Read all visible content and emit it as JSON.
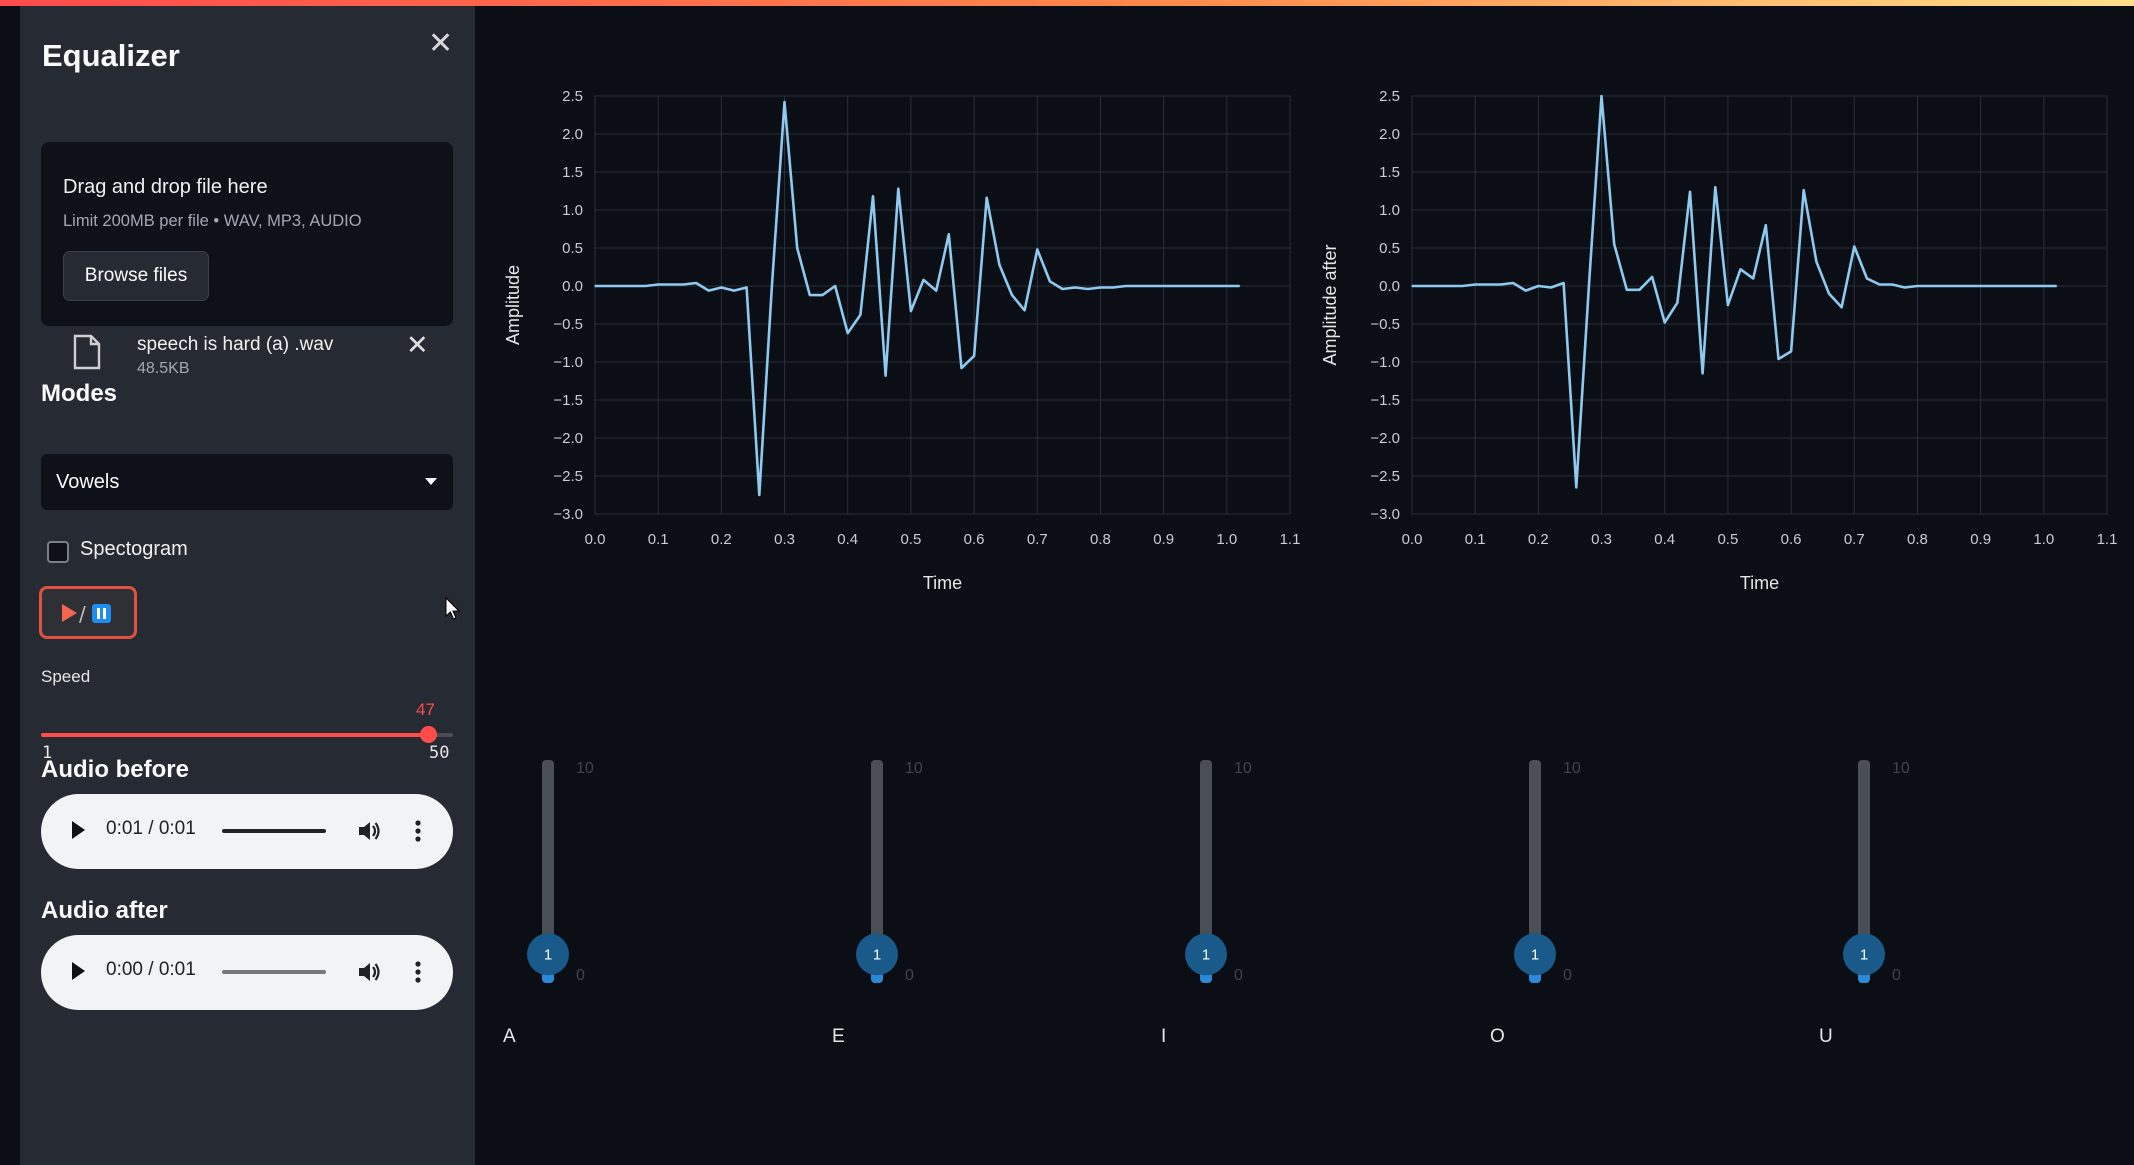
{
  "sidebar": {
    "title": "Equalizer",
    "uploader": {
      "title": "Drag and drop file here",
      "limit": "Limit 200MB per file • WAV, MP3, AUDIO",
      "browse_label": "Browse files"
    },
    "file": {
      "name": "speech is hard (a) .wav",
      "size": "48.5KB"
    },
    "modes_label": "Modes",
    "mode_selected": "Vowels",
    "spectrogram_label": "Spectogram",
    "spectrogram_checked": false,
    "speed": {
      "label": "Speed",
      "value": "47",
      "min": "1",
      "max": "50",
      "fraction": 0.939
    },
    "audio_before": {
      "title": "Audio before",
      "time": "0:01 / 0:01",
      "progress": 1.0
    },
    "audio_after": {
      "title": "Audio after",
      "time": "0:00 / 0:01",
      "progress": 0.0
    }
  },
  "sliders": [
    {
      "label": "A",
      "value": "1",
      "max": "10",
      "min": "0"
    },
    {
      "label": "E",
      "value": "1",
      "max": "10",
      "min": "0"
    },
    {
      "label": "I",
      "value": "1",
      "max": "10",
      "min": "0"
    },
    {
      "label": "O",
      "value": "1",
      "max": "10",
      "min": "0"
    },
    {
      "label": "U",
      "value": "1",
      "max": "10",
      "min": "0"
    }
  ],
  "colors": {
    "accent": "#ff4b4b",
    "line": "#8ec9f0",
    "knob": "#1a5a8a",
    "sidebar_bg": "#262a33",
    "main_bg": "#0b0e14"
  },
  "chart_data": [
    {
      "type": "line",
      "xlabel": "Time",
      "ylabel": "Amplitude",
      "xlim": [
        0,
        1.1
      ],
      "ylim": [
        -3.0,
        2.5
      ],
      "xticks": [
        "0.0",
        "0.1",
        "0.2",
        "0.3",
        "0.4",
        "0.5",
        "0.6",
        "0.7",
        "0.8",
        "0.9",
        "1.0",
        "1.1"
      ],
      "yticks": [
        "2.5",
        "2.0",
        "1.5",
        "1.0",
        "0.5",
        "0.0",
        "−0.5",
        "−1.0",
        "−1.5",
        "−2.0",
        "−2.5",
        "−3.0"
      ],
      "grid": true,
      "x": [
        0.0,
        0.04,
        0.08,
        0.1,
        0.12,
        0.14,
        0.16,
        0.18,
        0.2,
        0.22,
        0.24,
        0.26,
        0.28,
        0.3,
        0.32,
        0.34,
        0.36,
        0.38,
        0.4,
        0.42,
        0.44,
        0.46,
        0.48,
        0.5,
        0.52,
        0.54,
        0.56,
        0.58,
        0.6,
        0.62,
        0.64,
        0.66,
        0.68,
        0.7,
        0.72,
        0.74,
        0.76,
        0.78,
        0.8,
        0.82,
        0.84,
        0.86,
        0.88,
        0.9,
        0.92,
        0.94,
        0.96,
        0.98,
        1.0,
        1.02
      ],
      "values": [
        0.0,
        0.0,
        0.0,
        0.02,
        0.02,
        0.02,
        0.04,
        -0.06,
        -0.02,
        -0.06,
        -0.02,
        -2.75,
        0.0,
        2.42,
        0.5,
        -0.12,
        -0.12,
        0.0,
        -0.62,
        -0.38,
        1.18,
        -1.18,
        1.28,
        -0.33,
        0.08,
        -0.06,
        0.68,
        -1.08,
        -0.92,
        1.16,
        0.28,
        -0.12,
        -0.32,
        0.48,
        0.06,
        -0.04,
        -0.02,
        -0.04,
        -0.02,
        -0.02,
        0.0,
        0.0,
        0.0,
        0.0,
        0.0,
        0.0,
        0.0,
        0.0,
        0.0,
        0.0
      ]
    },
    {
      "type": "line",
      "xlabel": "Time",
      "ylabel": "Amplitude after",
      "xlim": [
        0,
        1.1
      ],
      "ylim": [
        -3.0,
        2.5
      ],
      "xticks": [
        "0.0",
        "0.1",
        "0.2",
        "0.3",
        "0.4",
        "0.5",
        "0.6",
        "0.7",
        "0.8",
        "0.9",
        "1.0",
        "1.1"
      ],
      "yticks": [
        "2.5",
        "2.0",
        "1.5",
        "1.0",
        "0.5",
        "0.0",
        "−0.5",
        "−1.0",
        "−1.5",
        "−2.0",
        "−2.5",
        "−3.0"
      ],
      "grid": true,
      "x": [
        0.0,
        0.04,
        0.08,
        0.1,
        0.12,
        0.14,
        0.16,
        0.18,
        0.2,
        0.22,
        0.24,
        0.26,
        0.28,
        0.3,
        0.32,
        0.34,
        0.36,
        0.38,
        0.4,
        0.42,
        0.44,
        0.46,
        0.48,
        0.5,
        0.52,
        0.54,
        0.56,
        0.58,
        0.6,
        0.62,
        0.64,
        0.66,
        0.68,
        0.7,
        0.72,
        0.74,
        0.76,
        0.78,
        0.8,
        0.82,
        0.84,
        0.86,
        0.88,
        0.9,
        0.92,
        0.94,
        0.96,
        0.98,
        1.0,
        1.02
      ],
      "values": [
        0.0,
        0.0,
        0.0,
        0.02,
        0.02,
        0.02,
        0.04,
        -0.06,
        0.0,
        -0.02,
        0.04,
        -2.65,
        0.0,
        2.5,
        0.55,
        -0.05,
        -0.05,
        0.12,
        -0.48,
        -0.22,
        1.24,
        -1.15,
        1.3,
        -0.25,
        0.22,
        0.1,
        0.8,
        -0.96,
        -0.86,
        1.26,
        0.32,
        -0.1,
        -0.28,
        0.52,
        0.1,
        0.02,
        0.02,
        -0.02,
        0.0,
        0.0,
        0.0,
        0.0,
        0.0,
        0.0,
        0.0,
        0.0,
        0.0,
        0.0,
        0.0,
        0.0
      ]
    }
  ]
}
